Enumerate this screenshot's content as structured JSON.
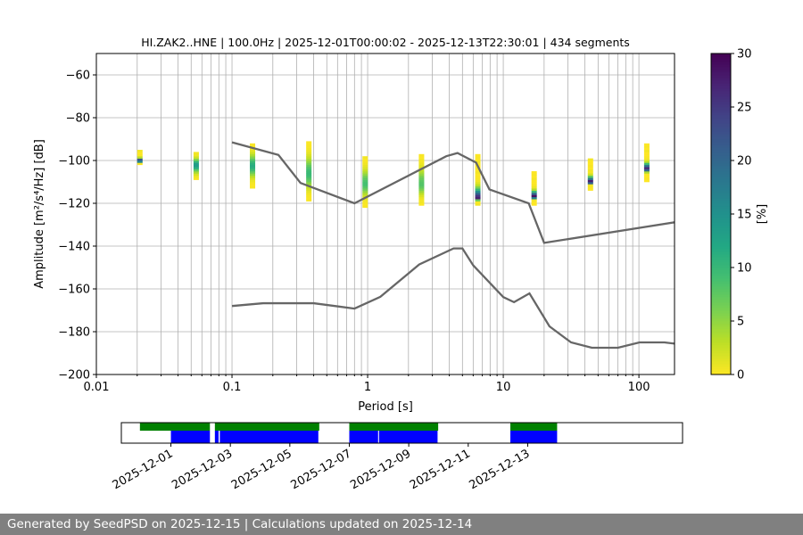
{
  "chart_data": [
    {
      "type": "heatmap",
      "title": "HI.ZAK2..HNE | 100.0Hz | 2025-12-01T00:00:02 - 2025-12-13T22:30:01 | 434 segments",
      "xlabel": "Period [s]",
      "ylabel": "Amplitude [m²/s⁴/Hz] [dB]",
      "xscale": "log",
      "xlim": [
        0.01,
        183
      ],
      "ylim": [
        -200,
        -50
      ],
      "xticks": [
        {
          "v": 0.01,
          "label": "0.01"
        },
        {
          "v": 0.1,
          "label": "0.1"
        },
        {
          "v": 1,
          "label": "1"
        },
        {
          "v": 10,
          "label": "10"
        },
        {
          "v": 100,
          "label": "100"
        }
      ],
      "yticks": [
        {
          "v": -60,
          "label": "−60"
        },
        {
          "v": -80,
          "label": "−80"
        },
        {
          "v": -100,
          "label": "−100"
        },
        {
          "v": -120,
          "label": "−120"
        },
        {
          "v": -140,
          "label": "−140"
        },
        {
          "v": -160,
          "label": "−160"
        },
        {
          "v": -180,
          "label": "−180"
        },
        {
          "v": -200,
          "label": "−200"
        }
      ],
      "grid": true,
      "colormap": "viridis_r",
      "colorbar": {
        "label": "[%]",
        "range": [
          0,
          30
        ],
        "ticks": [
          {
            "v": 0,
            "label": "0"
          },
          {
            "v": 5,
            "label": "5"
          },
          {
            "v": 10,
            "label": "10"
          },
          {
            "v": 15,
            "label": "15"
          },
          {
            "v": 20,
            "label": "20"
          },
          {
            "v": 25,
            "label": "25"
          },
          {
            "v": 30,
            "label": "30"
          }
        ]
      },
      "ppsd": {
        "mode_curve": [
          [
            0.02,
            -100
          ],
          [
            0.03,
            -103.5
          ],
          [
            0.05,
            -102
          ],
          [
            0.1,
            -102
          ],
          [
            0.2,
            -103
          ],
          [
            0.35,
            -106
          ],
          [
            0.6,
            -110
          ],
          [
            1,
            -111
          ],
          [
            2,
            -110
          ],
          [
            3,
            -112.5
          ],
          [
            4.5,
            -117.5
          ],
          [
            10,
            -118
          ],
          [
            15,
            -117.5
          ],
          [
            30,
            -112.5
          ],
          [
            60,
            -107.5
          ],
          [
            100,
            -104
          ],
          [
            183,
            -103
          ]
        ],
        "mode_percent": [
          [
            0.02,
            28
          ],
          [
            0.03,
            28
          ],
          [
            0.05,
            14
          ],
          [
            0.1,
            12
          ],
          [
            0.3,
            10
          ],
          [
            1,
            9
          ],
          [
            3,
            8
          ],
          [
            4.5,
            26
          ],
          [
            10,
            30
          ],
          [
            30,
            30
          ],
          [
            100,
            28
          ],
          [
            183,
            22
          ]
        ],
        "envelope_upper": [
          [
            0.02,
            -95
          ],
          [
            0.03,
            -99
          ],
          [
            0.1,
            -93
          ],
          [
            0.2,
            -91
          ],
          [
            0.5,
            -92
          ],
          [
            0.8,
            -98
          ],
          [
            1.5,
            -100
          ],
          [
            3,
            -96
          ],
          [
            5,
            -95
          ],
          [
            8,
            -100
          ],
          [
            15,
            -106
          ],
          [
            50,
            -98
          ],
          [
            100,
            -93
          ],
          [
            183,
            -90
          ]
        ],
        "envelope_lower": [
          [
            0.02,
            -102
          ],
          [
            0.03,
            -108
          ],
          [
            0.1,
            -110
          ],
          [
            0.3,
            -118
          ],
          [
            0.7,
            -121
          ],
          [
            1.5,
            -122
          ],
          [
            3,
            -120
          ],
          [
            5,
            -120
          ],
          [
            10,
            -121
          ],
          [
            20,
            -120
          ],
          [
            50,
            -112
          ],
          [
            183,
            -108
          ]
        ]
      },
      "noise_models": [
        {
          "name": "NHNM",
          "color": "#666666",
          "points": [
            [
              0.1,
              -91.5
            ],
            [
              0.22,
              -97.4
            ],
            [
              0.32,
              -110.5
            ],
            [
              0.8,
              -120
            ],
            [
              3.8,
              -98
            ],
            [
              4.6,
              -96.5
            ],
            [
              6.3,
              -101
            ],
            [
              7.9,
              -113.5
            ],
            [
              15.4,
              -120
            ],
            [
              20,
              -138.5
            ],
            [
              354.8,
              -126
            ]
          ]
        },
        {
          "name": "NLNM",
          "color": "#666666",
          "points": [
            [
              0.1,
              -168
            ],
            [
              0.17,
              -166.7
            ],
            [
              0.4,
              -166.7
            ],
            [
              0.8,
              -169.2
            ],
            [
              1.24,
              -163.7
            ],
            [
              2.4,
              -148.6
            ],
            [
              4.3,
              -141.1
            ],
            [
              5,
              -141.1
            ],
            [
              6,
              -149
            ],
            [
              10,
              -163.8
            ],
            [
              12,
              -166.2
            ],
            [
              15.6,
              -162.1
            ],
            [
              21.9,
              -177.5
            ],
            [
              31.6,
              -185
            ],
            [
              45,
              -187.5
            ],
            [
              70,
              -187.5
            ],
            [
              101,
              -185
            ],
            [
              154,
              -185
            ],
            [
              328,
              -187.5
            ]
          ]
        }
      ]
    },
    {
      "type": "timeline",
      "xlim": [
        "2025-11-29T08:00",
        "2025-12-18T05:00"
      ],
      "xticks": [
        "2025-12-01",
        "2025-12-03",
        "2025-12-05",
        "2025-12-07",
        "2025-12-09",
        "2025-12-11",
        "2025-12-13"
      ],
      "data_coverage": {
        "color": "#008000",
        "intervals": [
          [
            "2025-11-29T23:00",
            "2025-12-02T07:30"
          ],
          [
            "2025-12-02T11:30",
            "2025-12-05T23:45"
          ],
          [
            "2025-12-07T00:00",
            "2025-12-09T23:45"
          ],
          [
            "2025-12-12T10:00",
            "2025-12-13T23:45"
          ]
        ]
      },
      "psd_coverage": {
        "color": "#0000ff",
        "intervals": [
          [
            "2025-12-01T00:00",
            "2025-12-02T07:30"
          ],
          [
            "2025-12-02T11:30",
            "2025-12-02T14:30"
          ],
          [
            "2025-12-02T15:30",
            "2025-12-05T23:00"
          ],
          [
            "2025-12-07T00:00",
            "2025-12-07T23:15"
          ],
          [
            "2025-12-08T00:00",
            "2025-12-09T23:15"
          ],
          [
            "2025-12-12T10:00",
            "2025-12-13T23:45"
          ]
        ]
      }
    }
  ],
  "footer": "Generated by SeedPSD on 2025-12-15 | Calculations updated on 2025-12-14"
}
